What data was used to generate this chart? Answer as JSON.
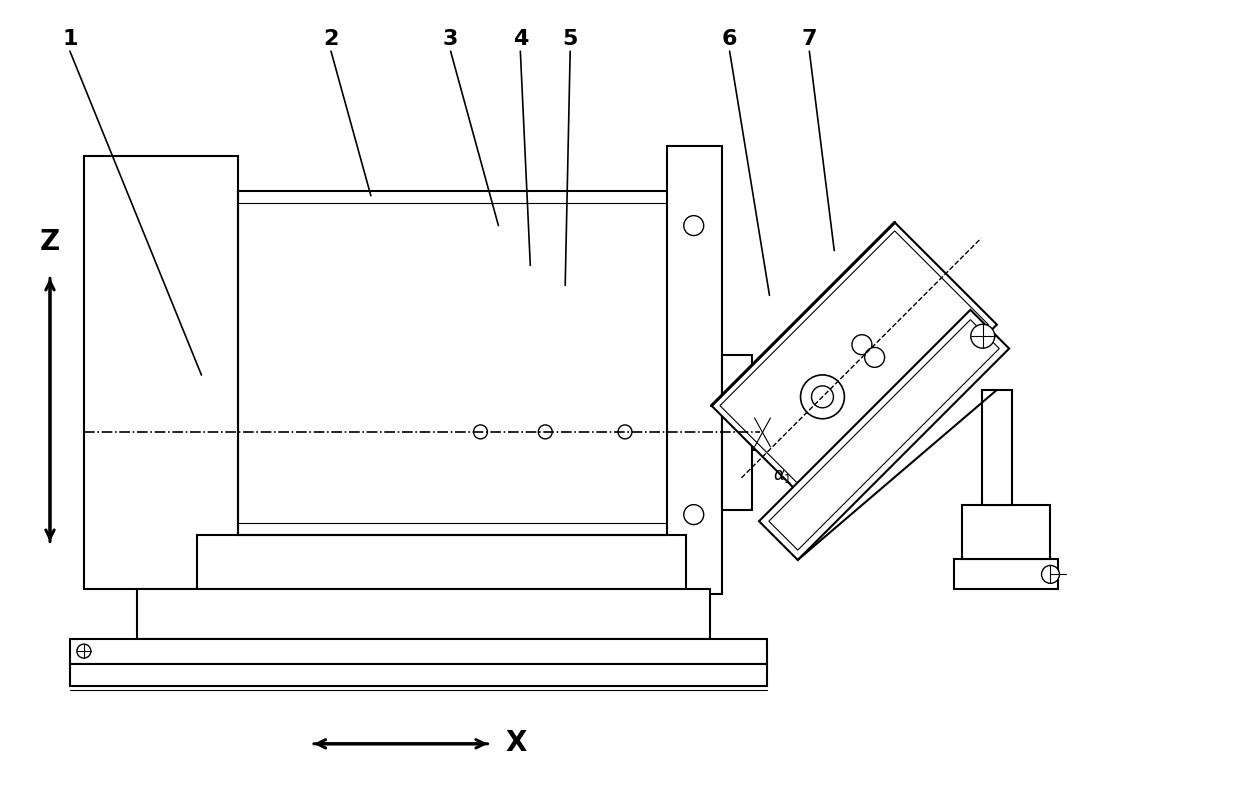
{
  "background_color": "#ffffff",
  "line_color": "#000000",
  "fig_width": 12.4,
  "fig_height": 7.99,
  "lw_main": 1.5,
  "lw_thin": 0.8,
  "lw_thick": 2.2,
  "lw_dash": 1.0
}
